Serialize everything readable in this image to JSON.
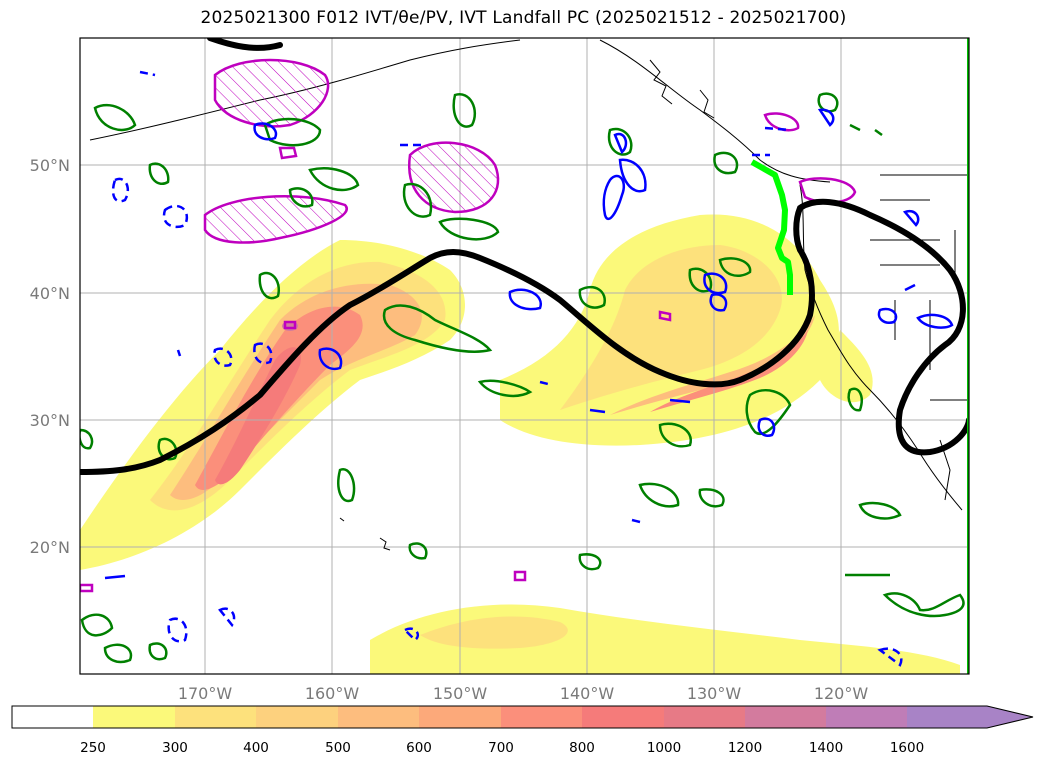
{
  "title": "2025021300 F012 IVT/θe/PV, IVT Landfall PC (2025021512 - 2025021700)",
  "map": {
    "lat_labels": [
      "50°N",
      "40°N",
      "30°N",
      "20°N"
    ],
    "lon_labels": [
      "170°W",
      "160°W",
      "150°W",
      "140°W",
      "130°W",
      "120°W"
    ],
    "colors": {
      "ivt_fill": [
        "#ffffff",
        "#fbf97a",
        "#fde17c",
        "#fdd17e",
        "#fdbd7e",
        "#fca97a",
        "#fb8f7b",
        "#f57b7a",
        "#d37b9e",
        "#bf7db7",
        "#a883c6"
      ],
      "theta_e_contour": "#008000",
      "pv_positive_contour": "#0000ff",
      "pv_hatched_contour": "#bf00bf",
      "landfall_pc_line": "#000000",
      "ivt_landfall_segment": "#00ff00",
      "grid": "#b0b0b0"
    }
  },
  "colorbar": {
    "ticks": [
      "250",
      "300",
      "400",
      "500",
      "600",
      "700",
      "800",
      "1000",
      "1200",
      "1400",
      "1600"
    ],
    "extend": "max"
  }
}
